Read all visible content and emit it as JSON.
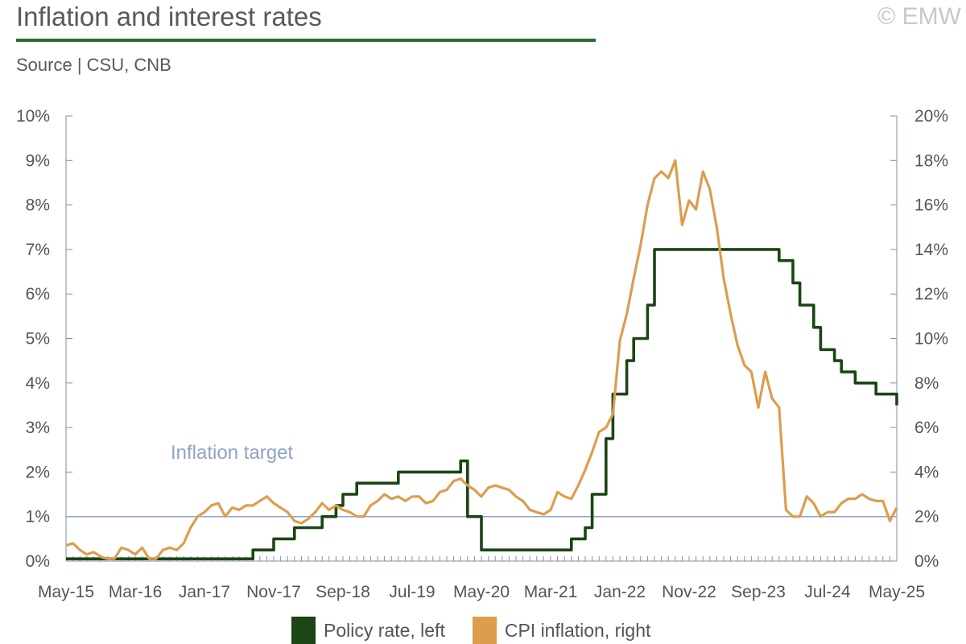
{
  "header": {
    "title": "Inflation and interest rates",
    "source": "Source | CSU, CNB",
    "copyright": "© EMW"
  },
  "colors": {
    "policy_rate": "#1b4513",
    "cpi": "#dd9d4e",
    "target_line": "#8fa4c6",
    "axis": "#7f8fa6",
    "title_rule": "#2e6b2e"
  },
  "chart_data": {
    "type": "line",
    "x_start": "May-15",
    "x_end": "May-25",
    "x_ticks": [
      "May-15",
      "Mar-16",
      "Jan-17",
      "Nov-17",
      "Sep-18",
      "Jul-19",
      "May-20",
      "Mar-21",
      "Jan-22",
      "Nov-22",
      "Sep-23",
      "Jul-24",
      "May-25"
    ],
    "y_left": {
      "ticks": [
        "0%",
        "1%",
        "2%",
        "3%",
        "4%",
        "5%",
        "6%",
        "7%",
        "8%",
        "9%",
        "10%"
      ],
      "ylim": [
        0,
        10
      ]
    },
    "y_right": {
      "ticks": [
        "0%",
        "2%",
        "4%",
        "6%",
        "8%",
        "10%",
        "12%",
        "14%",
        "16%",
        "18%",
        "20%"
      ],
      "ylim": [
        0,
        20
      ]
    },
    "grid": false,
    "annotation": {
      "text": "Inflation target",
      "value_right_axis": 2
    },
    "series": [
      {
        "name": "Policy rate, left",
        "axis": "left",
        "step": true,
        "points": [
          [
            "May-15",
            0.05
          ],
          [
            "Aug-17",
            0.05
          ],
          [
            "Aug-17",
            0.25
          ],
          [
            "Nov-17",
            0.25
          ],
          [
            "Nov-17",
            0.5
          ],
          [
            "Feb-18",
            0.5
          ],
          [
            "Feb-18",
            0.75
          ],
          [
            "Jun-18",
            0.75
          ],
          [
            "Jun-18",
            1.0
          ],
          [
            "Aug-18",
            1.0
          ],
          [
            "Aug-18",
            1.25
          ],
          [
            "Sep-18",
            1.25
          ],
          [
            "Sep-18",
            1.5
          ],
          [
            "Nov-18",
            1.5
          ],
          [
            "Nov-18",
            1.75
          ],
          [
            "May-19",
            1.75
          ],
          [
            "May-19",
            2.0
          ],
          [
            "Feb-20",
            2.0
          ],
          [
            "Feb-20",
            2.25
          ],
          [
            "Mar-20",
            2.25
          ],
          [
            "Mar-20",
            1.75
          ],
          [
            "Mar-20",
            1.0
          ],
          [
            "May-20",
            1.0
          ],
          [
            "May-20",
            0.25
          ],
          [
            "Jun-21",
            0.25
          ],
          [
            "Jun-21",
            0.5
          ],
          [
            "Aug-21",
            0.5
          ],
          [
            "Aug-21",
            0.75
          ],
          [
            "Sep-21",
            0.75
          ],
          [
            "Sep-21",
            1.5
          ],
          [
            "Nov-21",
            1.5
          ],
          [
            "Nov-21",
            2.75
          ],
          [
            "Dec-21",
            2.75
          ],
          [
            "Dec-21",
            3.75
          ],
          [
            "Feb-22",
            3.75
          ],
          [
            "Feb-22",
            4.5
          ],
          [
            "Mar-22",
            4.5
          ],
          [
            "Mar-22",
            5.0
          ],
          [
            "May-22",
            5.0
          ],
          [
            "May-22",
            5.75
          ],
          [
            "Jun-22",
            5.75
          ],
          [
            "Jun-22",
            7.0
          ],
          [
            "Dec-23",
            7.0
          ],
          [
            "Dec-23",
            6.75
          ],
          [
            "Feb-24",
            6.75
          ],
          [
            "Feb-24",
            6.25
          ],
          [
            "Mar-24",
            6.25
          ],
          [
            "Mar-24",
            5.75
          ],
          [
            "May-24",
            5.75
          ],
          [
            "May-24",
            5.25
          ],
          [
            "Jun-24",
            5.25
          ],
          [
            "Jun-24",
            4.75
          ],
          [
            "Aug-24",
            4.75
          ],
          [
            "Aug-24",
            4.5
          ],
          [
            "Sep-24",
            4.5
          ],
          [
            "Sep-24",
            4.25
          ],
          [
            "Nov-24",
            4.25
          ],
          [
            "Nov-24",
            4.0
          ],
          [
            "Feb-25",
            4.0
          ],
          [
            "Feb-25",
            3.75
          ],
          [
            "May-25",
            3.75
          ],
          [
            "May-25",
            3.5
          ]
        ]
      },
      {
        "name": "CPI inflation, right",
        "axis": "right",
        "step": false,
        "points": [
          [
            "May-15",
            0.7
          ],
          [
            "Jun-15",
            0.8
          ],
          [
            "Jul-15",
            0.5
          ],
          [
            "Aug-15",
            0.3
          ],
          [
            "Sep-15",
            0.4
          ],
          [
            "Oct-15",
            0.2
          ],
          [
            "Nov-15",
            0.1
          ],
          [
            "Dec-15",
            0.1
          ],
          [
            "Jan-16",
            0.6
          ],
          [
            "Feb-16",
            0.5
          ],
          [
            "Mar-16",
            0.3
          ],
          [
            "Apr-16",
            0.6
          ],
          [
            "May-16",
            0.1
          ],
          [
            "Jun-16",
            0.1
          ],
          [
            "Jul-16",
            0.5
          ],
          [
            "Aug-16",
            0.6
          ],
          [
            "Sep-16",
            0.5
          ],
          [
            "Oct-16",
            0.8
          ],
          [
            "Nov-16",
            1.5
          ],
          [
            "Dec-16",
            2.0
          ],
          [
            "Jan-17",
            2.2
          ],
          [
            "Feb-17",
            2.5
          ],
          [
            "Mar-17",
            2.6
          ],
          [
            "Apr-17",
            2.0
          ],
          [
            "May-17",
            2.4
          ],
          [
            "Jun-17",
            2.3
          ],
          [
            "Jul-17",
            2.5
          ],
          [
            "Aug-17",
            2.5
          ],
          [
            "Sep-17",
            2.7
          ],
          [
            "Oct-17",
            2.9
          ],
          [
            "Nov-17",
            2.6
          ],
          [
            "Dec-17",
            2.4
          ],
          [
            "Jan-18",
            2.2
          ],
          [
            "Feb-18",
            1.8
          ],
          [
            "Mar-18",
            1.7
          ],
          [
            "Apr-18",
            1.9
          ],
          [
            "May-18",
            2.2
          ],
          [
            "Jun-18",
            2.6
          ],
          [
            "Jul-18",
            2.3
          ],
          [
            "Aug-18",
            2.5
          ],
          [
            "Sep-18",
            2.3
          ],
          [
            "Oct-18",
            2.2
          ],
          [
            "Nov-18",
            2.0
          ],
          [
            "Dec-18",
            2.0
          ],
          [
            "Jan-19",
            2.5
          ],
          [
            "Feb-19",
            2.7
          ],
          [
            "Mar-19",
            3.0
          ],
          [
            "Apr-19",
            2.8
          ],
          [
            "May-19",
            2.9
          ],
          [
            "Jun-19",
            2.7
          ],
          [
            "Jul-19",
            2.9
          ],
          [
            "Aug-19",
            2.9
          ],
          [
            "Sep-19",
            2.6
          ],
          [
            "Oct-19",
            2.7
          ],
          [
            "Nov-19",
            3.1
          ],
          [
            "Dec-19",
            3.2
          ],
          [
            "Jan-20",
            3.6
          ],
          [
            "Feb-20",
            3.7
          ],
          [
            "Mar-20",
            3.4
          ],
          [
            "Apr-20",
            3.2
          ],
          [
            "May-20",
            2.9
          ],
          [
            "Jun-20",
            3.3
          ],
          [
            "Jul-20",
            3.4
          ],
          [
            "Aug-20",
            3.3
          ],
          [
            "Sep-20",
            3.2
          ],
          [
            "Oct-20",
            2.9
          ],
          [
            "Nov-20",
            2.7
          ],
          [
            "Dec-20",
            2.3
          ],
          [
            "Jan-21",
            2.2
          ],
          [
            "Feb-21",
            2.1
          ],
          [
            "Mar-21",
            2.3
          ],
          [
            "Apr-21",
            3.1
          ],
          [
            "May-21",
            2.9
          ],
          [
            "Jun-21",
            2.8
          ],
          [
            "Jul-21",
            3.4
          ],
          [
            "Aug-21",
            4.1
          ],
          [
            "Sep-21",
            4.9
          ],
          [
            "Oct-21",
            5.8
          ],
          [
            "Nov-21",
            6.0
          ],
          [
            "Dec-21",
            6.6
          ],
          [
            "Jan-22",
            9.9
          ],
          [
            "Feb-22",
            11.1
          ],
          [
            "Mar-22",
            12.7
          ],
          [
            "Apr-22",
            14.2
          ],
          [
            "May-22",
            16.0
          ],
          [
            "Jun-22",
            17.2
          ],
          [
            "Jul-22",
            17.5
          ],
          [
            "Aug-22",
            17.2
          ],
          [
            "Sep-22",
            18.0
          ],
          [
            "Oct-22",
            15.1
          ],
          [
            "Nov-22",
            16.2
          ],
          [
            "Dec-22",
            15.8
          ],
          [
            "Jan-23",
            17.5
          ],
          [
            "Feb-23",
            16.7
          ],
          [
            "Mar-23",
            15.0
          ],
          [
            "Apr-23",
            12.7
          ],
          [
            "May-23",
            11.1
          ],
          [
            "Jun-23",
            9.7
          ],
          [
            "Jul-23",
            8.8
          ],
          [
            "Aug-23",
            8.5
          ],
          [
            "Sep-23",
            6.9
          ],
          [
            "Oct-23",
            8.5
          ],
          [
            "Nov-23",
            7.3
          ],
          [
            "Dec-23",
            6.9
          ],
          [
            "Jan-24",
            2.3
          ],
          [
            "Feb-24",
            2.0
          ],
          [
            "Mar-24",
            2.0
          ],
          [
            "Apr-24",
            2.9
          ],
          [
            "May-24",
            2.6
          ],
          [
            "Jun-24",
            2.0
          ],
          [
            "Jul-24",
            2.2
          ],
          [
            "Aug-24",
            2.2
          ],
          [
            "Sep-24",
            2.6
          ],
          [
            "Oct-24",
            2.8
          ],
          [
            "Nov-24",
            2.8
          ],
          [
            "Dec-24",
            3.0
          ],
          [
            "Jan-25",
            2.8
          ],
          [
            "Feb-25",
            2.7
          ],
          [
            "Mar-25",
            2.7
          ],
          [
            "Apr-25",
            1.8
          ],
          [
            "May-25",
            2.4
          ]
        ]
      }
    ]
  }
}
